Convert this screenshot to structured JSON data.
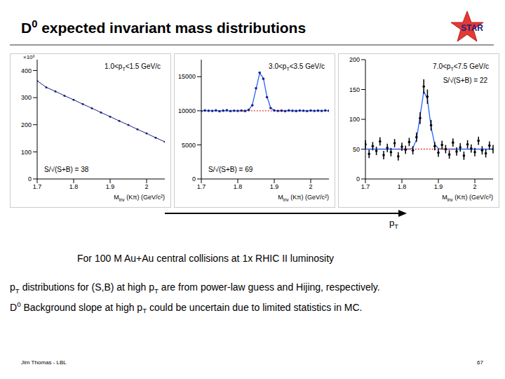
{
  "slide": {
    "title": "D0 expected invariant mass distributions",
    "logo": "STAR",
    "arrow_label": "pT",
    "caption": "For 100 M Au+Au central collisions at 1x RHIC II luminosity",
    "notes": [
      "pT distributions for (S,B) at high pT are from power-law guess and Hijing, respectively.",
      "D0 Background slope at high pT could be uncertain due to limited statistics in MC."
    ],
    "footer": "Jim Thomas - LBL",
    "page": "67"
  },
  "chart_data": [
    {
      "type": "line",
      "title": "1.0<pT<1.5 GeV/c",
      "xlabel": "Minv (Kπ) (GeV/c²)",
      "ylabel": "×10³",
      "annotation": "S/√(S+B) = 38",
      "x": [
        1.7,
        1.725,
        1.75,
        1.775,
        1.8,
        1.825,
        1.85,
        1.875,
        1.9,
        1.925,
        1.95,
        1.975,
        2,
        2.025,
        2.05
      ],
      "series": [
        {
          "type": "line",
          "color": "#1a237e",
          "marker": "circle",
          "values": [
            362,
            338,
            323,
            307,
            292,
            276,
            261,
            245,
            230,
            214,
            199,
            183,
            168,
            152,
            137
          ]
        }
      ],
      "xlim": [
        1.7,
        2.05
      ],
      "xticks": [
        1.7,
        1.8,
        1.9,
        2
      ],
      "ylim": [
        0,
        440
      ],
      "yticks": [
        0,
        100,
        200,
        300,
        400
      ],
      "grid": false
    },
    {
      "type": "scatter",
      "title": "3.0<pT<3.5 GeV/c",
      "xlabel": "Minv (Kπ) (GeV/c²)",
      "annotation": "S/√(S+B) = 69",
      "x": [
        1.7,
        1.71,
        1.72,
        1.73,
        1.74,
        1.75,
        1.76,
        1.77,
        1.78,
        1.79,
        1.8,
        1.81,
        1.82,
        1.83,
        1.84,
        1.85,
        1.86,
        1.87,
        1.88,
        1.89,
        1.9,
        1.91,
        1.92,
        1.93,
        1.94,
        1.95,
        1.96,
        1.97,
        1.98,
        1.99,
        2,
        2.01,
        2.02,
        2.03,
        2.04,
        2.05
      ],
      "series": [
        {
          "type": "line",
          "color": "#2962ff",
          "marker": "none",
          "values": [
            10000,
            10000,
            10000,
            10000,
            10000,
            10000,
            10000,
            10000,
            10000,
            10000,
            10000,
            10000,
            10000,
            10130,
            10910,
            13170,
            15520,
            14810,
            12090,
            10450,
            10030,
            10000,
            10000,
            10000,
            10000,
            10000,
            10000,
            10000,
            10000,
            10000,
            10000,
            10000,
            10000,
            10000,
            10000,
            10000
          ]
        },
        {
          "type": "line",
          "color": "#e53935",
          "marker": "none",
          "line_style": "dashed",
          "values": [
            null,
            null,
            null,
            null,
            null,
            null,
            null,
            null,
            null,
            10000,
            10000,
            10000,
            10000,
            10000,
            10000,
            10000,
            10000,
            10000,
            10000,
            10000,
            10000,
            10000,
            10000,
            10000,
            10000,
            null,
            null,
            null,
            null,
            null,
            null,
            null,
            null,
            null,
            null,
            null
          ]
        },
        {
          "type": "scatter",
          "color": "#1a237e",
          "marker": "circle",
          "values": [
            9950,
            10050,
            10000,
            9980,
            10060,
            9940,
            10020,
            10080,
            9960,
            10010,
            9990,
            10040,
            9970,
            10130,
            10800,
            13300,
            15600,
            14700,
            12000,
            10400,
            10050,
            9980,
            10020,
            9950,
            10060,
            10000,
            9970,
            10030,
            10010,
            9960,
            10040,
            9990,
            10020,
            9980,
            10050,
            10000
          ]
        }
      ],
      "xlim": [
        1.7,
        2.05
      ],
      "xticks": [
        1.7,
        1.8,
        1.9,
        2
      ],
      "ylim": [
        0,
        17500
      ],
      "yticks": [
        0,
        5000,
        10000,
        15000
      ],
      "grid": false
    },
    {
      "type": "scatter",
      "title": "7.0<pT<7.5 GeV/c",
      "xlabel": "Minv (Kπ) (GeV/c²)",
      "annotation": "S/√(S+B) = 22",
      "x": [
        1.7,
        1.71,
        1.72,
        1.73,
        1.74,
        1.75,
        1.76,
        1.77,
        1.78,
        1.79,
        1.8,
        1.81,
        1.82,
        1.83,
        1.84,
        1.85,
        1.86,
        1.87,
        1.88,
        1.89,
        1.9,
        1.91,
        1.92,
        1.93,
        1.94,
        1.95,
        1.96,
        1.97,
        1.98,
        1.99,
        2,
        2.01,
        2.02,
        2.03,
        2.04,
        2.05
      ],
      "series": [
        {
          "type": "line",
          "color": "#2962ff",
          "marker": "none",
          "values": [
            50,
            50,
            50,
            50,
            50,
            50,
            50,
            50,
            50,
            50,
            50,
            50,
            50,
            52,
            66,
            106,
            147,
            134,
            87,
            58,
            51,
            50,
            50,
            50,
            50,
            50,
            50,
            50,
            50,
            50,
            50,
            50,
            50,
            50,
            50,
            50
          ]
        },
        {
          "type": "line",
          "color": "#e53935",
          "marker": "none",
          "line_style": "dashed",
          "values": [
            null,
            null,
            null,
            null,
            null,
            null,
            null,
            null,
            null,
            50,
            50,
            50,
            50,
            50,
            50,
            50,
            50,
            50,
            50,
            50,
            50,
            50,
            50,
            50,
            50,
            null,
            null,
            null,
            null,
            null,
            null,
            null,
            null,
            null,
            null,
            null
          ]
        },
        {
          "type": "scatter",
          "color": "#000000",
          "marker": "circle",
          "values": [
            58,
            42,
            55,
            47,
            63,
            40,
            52,
            45,
            60,
            38,
            54,
            49,
            62,
            48,
            70,
            102,
            155,
            138,
            90,
            55,
            44,
            57,
            50,
            41,
            61,
            46,
            53,
            39,
            58,
            51,
            45,
            64,
            48,
            43,
            56,
            50
          ],
          "errors": [
            7,
            7,
            7,
            7,
            7,
            7,
            7,
            7,
            7,
            7,
            7,
            7,
            7,
            7,
            8,
            10,
            12,
            12,
            9,
            7,
            7,
            7,
            7,
            7,
            7,
            7,
            7,
            7,
            7,
            7,
            7,
            7,
            7,
            7,
            7,
            7
          ]
        }
      ],
      "xlim": [
        1.7,
        2.05
      ],
      "xticks": [
        1.7,
        1.8,
        1.9,
        2
      ],
      "ylim": [
        0,
        200
      ],
      "yticks": [
        0,
        50,
        100,
        150,
        200
      ],
      "grid": false
    }
  ]
}
